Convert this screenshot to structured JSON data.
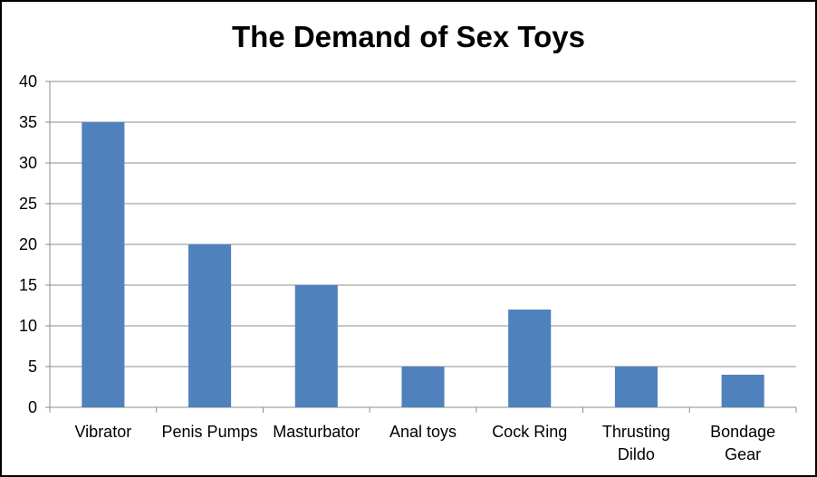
{
  "chart_data": {
    "type": "bar",
    "title": "The Demand of Sex Toys",
    "xlabel": "",
    "ylabel": "",
    "categories": [
      [
        "Vibrator"
      ],
      [
        "Penis Pumps"
      ],
      [
        "Masturbator"
      ],
      [
        "Anal toys"
      ],
      [
        "Cock Ring"
      ],
      [
        "Thrusting",
        "Dildo"
      ],
      [
        "Bondage",
        "Gear"
      ]
    ],
    "values": [
      35,
      20,
      15,
      5,
      12,
      5,
      4
    ],
    "ylim": [
      0,
      40
    ],
    "yticks": [
      0,
      5,
      10,
      15,
      20,
      25,
      30,
      35,
      40
    ],
    "grid": true,
    "legend": "none",
    "colors": {
      "bar": "#4f81bd",
      "grid": "#8c8c8c",
      "axis": "#8c8c8c"
    }
  }
}
